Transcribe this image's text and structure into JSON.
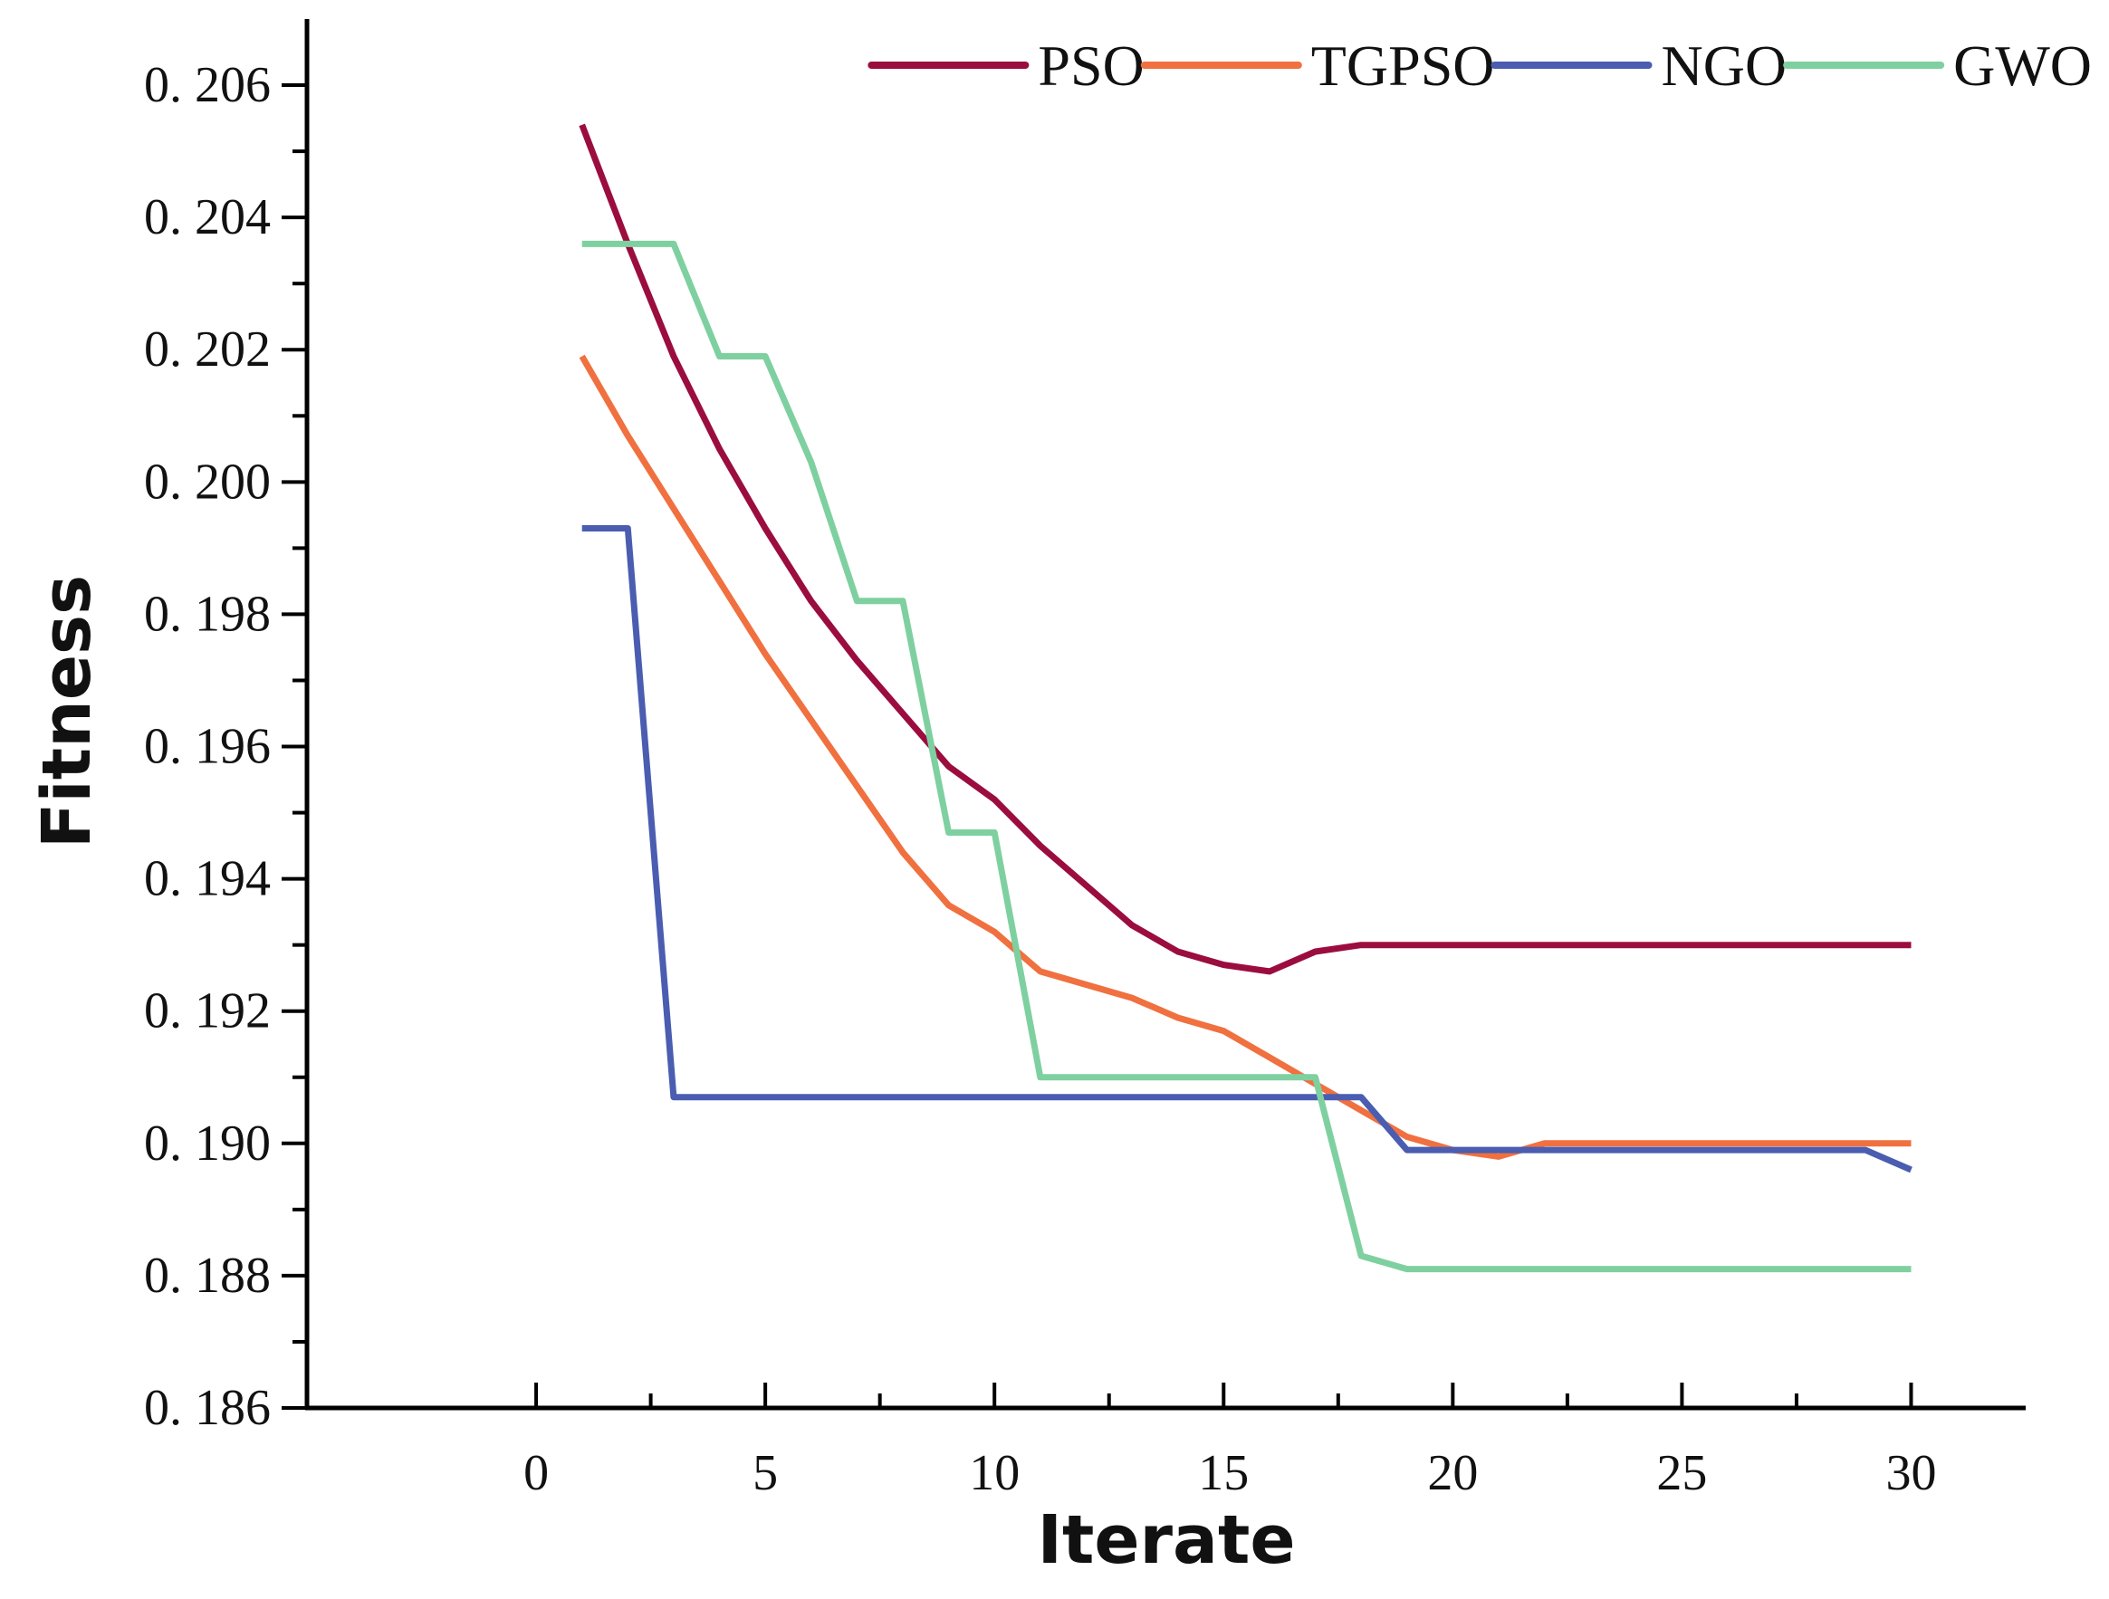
{
  "chart_data": {
    "type": "line",
    "title": "",
    "xlabel": "Iterate",
    "ylabel": "Fitness",
    "xlim": [
      -5,
      32.5
    ],
    "ylim": [
      0.186,
      0.207
    ],
    "x_ticks": [
      0,
      5,
      10,
      15,
      20,
      25,
      30
    ],
    "x_tick_labels": [
      "0",
      "5",
      "10",
      "15",
      "20",
      "25",
      "30"
    ],
    "y_ticks": [
      0.186,
      0.188,
      0.19,
      0.192,
      0.194,
      0.196,
      0.198,
      0.2,
      0.202,
      0.204,
      0.206
    ],
    "y_tick_labels": [
      "0. 186",
      "0. 188",
      "0. 190",
      "0. 192",
      "0. 194",
      "0. 196",
      "0. 198",
      "0. 200",
      "0. 202",
      "0. 204",
      "0. 206"
    ],
    "grid": false,
    "legend_position": "top-right",
    "x": [
      1,
      2,
      3,
      4,
      5,
      6,
      7,
      8,
      9,
      10,
      11,
      12,
      13,
      14,
      15,
      16,
      17,
      18,
      19,
      20,
      21,
      22,
      23,
      24,
      25,
      26,
      27,
      28,
      29,
      30
    ],
    "series": [
      {
        "name": "PSO",
        "color": "#9b0d3f",
        "values": [
          0.2054,
          0.2036,
          0.2019,
          0.2005,
          0.1993,
          0.1982,
          0.1973,
          0.1965,
          0.1957,
          0.1952,
          0.1945,
          0.1939,
          0.1933,
          0.1929,
          0.1927,
          0.1926,
          0.1929,
          0.193,
          0.193,
          0.193,
          0.193,
          0.193,
          0.193,
          0.193,
          0.193,
          0.193,
          0.193,
          0.193,
          0.193,
          0.193
        ]
      },
      {
        "name": "TGPSO",
        "color": "#f07040",
        "values": [
          0.2019,
          0.2007,
          0.1996,
          0.1985,
          0.1974,
          0.1964,
          0.1954,
          0.1944,
          0.1936,
          0.1932,
          0.1926,
          0.1924,
          0.1922,
          0.1919,
          0.1917,
          0.1913,
          0.1909,
          0.1905,
          0.1901,
          0.1899,
          0.1898,
          0.19,
          0.19,
          0.19,
          0.19,
          0.19,
          0.19,
          0.19,
          0.19,
          0.19
        ]
      },
      {
        "name": "NGO",
        "color": "#4a5db0",
        "values": [
          0.1993,
          0.1993,
          0.1907,
          0.1907,
          0.1907,
          0.1907,
          0.1907,
          0.1907,
          0.1907,
          0.1907,
          0.1907,
          0.1907,
          0.1907,
          0.1907,
          0.1907,
          0.1907,
          0.1907,
          0.1907,
          0.1899,
          0.1899,
          0.1899,
          0.1899,
          0.1899,
          0.1899,
          0.1899,
          0.1899,
          0.1899,
          0.1899,
          0.1899,
          0.1896
        ]
      },
      {
        "name": "GWO",
        "color": "#7fd0a0",
        "values": [
          0.2036,
          0.2036,
          0.2036,
          0.2019,
          0.2019,
          0.2003,
          0.1982,
          0.1982,
          0.1947,
          0.1947,
          0.191,
          0.191,
          0.191,
          0.191,
          0.191,
          0.191,
          0.191,
          0.1883,
          0.1881,
          0.1881,
          0.1881,
          0.1881,
          0.1881,
          0.1881,
          0.1881,
          0.1881,
          0.1881,
          0.1881,
          0.1881,
          0.1881
        ]
      }
    ]
  }
}
